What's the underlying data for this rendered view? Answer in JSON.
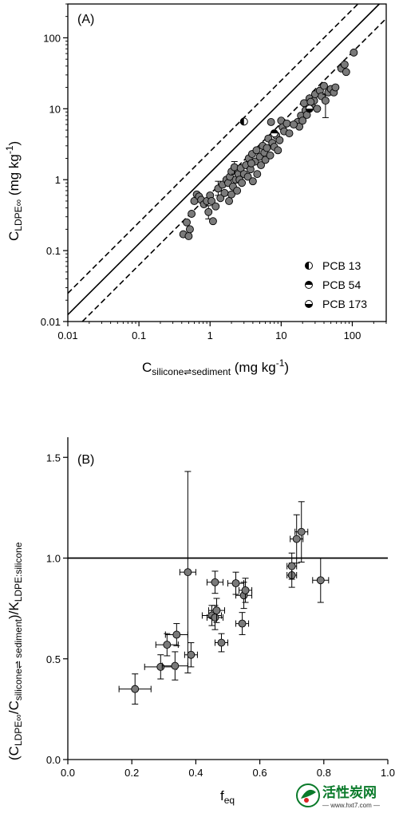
{
  "chart_data": [
    {
      "type": "scatter",
      "panel_label": "(A)",
      "xscale": "log",
      "yscale": "log",
      "xlim": [
        0.01,
        300
      ],
      "ylim": [
        0.01,
        300
      ],
      "xticks": [
        "0.01",
        "0.1",
        "1",
        "10",
        "100"
      ],
      "yticks": [
        "0.01",
        "0.1",
        "1",
        "10",
        "100"
      ],
      "xlabel": {
        "main": "C",
        "sub": "silicone⇌sediment",
        "unit": " (mg kg",
        "sup": "-1",
        "close": ")"
      },
      "ylabel": {
        "main": "C",
        "sub": "LDPE∞",
        "unit": " (mg kg",
        "sup": "-1",
        "close": ")"
      },
      "lines": [
        {
          "style": "solid",
          "slope": 1,
          "intercept_factor": 1.25
        },
        {
          "style": "dashed",
          "slope": 1,
          "intercept_factor": 0.625
        },
        {
          "style": "dashed",
          "slope": 1,
          "intercept_factor": 2.5
        }
      ],
      "legend": {
        "placement": "bottom-right",
        "entries": [
          "PCB 13",
          "PCB 54",
          "PCB 173"
        ]
      },
      "special_points": [
        {
          "name": "PCB 13",
          "x": 3.0,
          "y": 6.6
        },
        {
          "name": "PCB 54",
          "x": 8.0,
          "y": 4.5
        },
        {
          "name": "PCB 173",
          "x": 25.0,
          "y": 10.0
        }
      ],
      "points": [
        {
          "x": 0.42,
          "y": 0.17
        },
        {
          "x": 0.47,
          "y": 0.25
        },
        {
          "x": 0.5,
          "y": 0.16
        },
        {
          "x": 0.52,
          "y": 0.2
        },
        {
          "x": 0.55,
          "y": 0.33
        },
        {
          "x": 0.6,
          "y": 0.5
        },
        {
          "x": 0.65,
          "y": 0.62
        },
        {
          "x": 0.7,
          "y": 0.58
        },
        {
          "x": 0.75,
          "y": 0.52
        },
        {
          "x": 0.82,
          "y": 0.45
        },
        {
          "x": 0.9,
          "y": 0.5
        },
        {
          "x": 0.95,
          "y": 0.35,
          "yerr": [
            0.28,
            0.43
          ]
        },
        {
          "x": 1.0,
          "y": 0.6
        },
        {
          "x": 1.05,
          "y": 0.5
        },
        {
          "x": 1.1,
          "y": 0.26
        },
        {
          "x": 1.2,
          "y": 0.42
        },
        {
          "x": 1.3,
          "y": 0.75,
          "yerr": [
            0.6,
            0.95
          ]
        },
        {
          "x": 1.4,
          "y": 0.55
        },
        {
          "x": 1.5,
          "y": 0.85
        },
        {
          "x": 1.6,
          "y": 0.65
        },
        {
          "x": 1.7,
          "y": 1.0
        },
        {
          "x": 1.8,
          "y": 0.9
        },
        {
          "x": 1.85,
          "y": 0.5
        },
        {
          "x": 1.9,
          "y": 1.1
        },
        {
          "x": 2.0,
          "y": 0.62
        },
        {
          "x": 2.0,
          "y": 1.3
        },
        {
          "x": 2.1,
          "y": 0.8
        },
        {
          "x": 2.2,
          "y": 1.5,
          "yerr": [
            1.2,
            1.8
          ]
        },
        {
          "x": 2.3,
          "y": 1.0
        },
        {
          "x": 2.4,
          "y": 0.7
        },
        {
          "x": 2.5,
          "y": 1.2
        },
        {
          "x": 2.6,
          "y": 1.0
        },
        {
          "x": 2.7,
          "y": 1.45
        },
        {
          "x": 2.8,
          "y": 0.9
        },
        {
          "x": 3.0,
          "y": 1.2
        },
        {
          "x": 3.2,
          "y": 1.6
        },
        {
          "x": 3.4,
          "y": 1.1
        },
        {
          "x": 3.5,
          "y": 2.0
        },
        {
          "x": 3.7,
          "y": 1.4
        },
        {
          "x": 3.9,
          "y": 2.3
        },
        {
          "x": 4.0,
          "y": 0.95
        },
        {
          "x": 4.3,
          "y": 1.8
        },
        {
          "x": 4.5,
          "y": 2.6
        },
        {
          "x": 4.6,
          "y": 1.2
        },
        {
          "x": 5.0,
          "y": 2.1
        },
        {
          "x": 5.2,
          "y": 1.6
        },
        {
          "x": 5.5,
          "y": 3.0
        },
        {
          "x": 5.8,
          "y": 2.4
        },
        {
          "x": 6.0,
          "y": 1.9
        },
        {
          "x": 6.3,
          "y": 2.8
        },
        {
          "x": 6.6,
          "y": 3.8
        },
        {
          "x": 7.0,
          "y": 2.2
        },
        {
          "x": 7.2,
          "y": 6.5
        },
        {
          "x": 7.5,
          "y": 3.3
        },
        {
          "x": 8.0,
          "y": 2.9
        },
        {
          "x": 8.5,
          "y": 4.2
        },
        {
          "x": 9.0,
          "y": 2.6
        },
        {
          "x": 9.5,
          "y": 3.6
        },
        {
          "x": 10.0,
          "y": 6.8
        },
        {
          "x": 10.5,
          "y": 5.5
        },
        {
          "x": 11.0,
          "y": 4.8
        },
        {
          "x": 12.0,
          "y": 6.2
        },
        {
          "x": 13.0,
          "y": 4.5
        },
        {
          "x": 17.0,
          "y": 6.5
        },
        {
          "x": 18.0,
          "y": 5.6
        },
        {
          "x": 19.0,
          "y": 8.0
        },
        {
          "x": 20.0,
          "y": 6.8
        },
        {
          "x": 21.0,
          "y": 12.0
        },
        {
          "x": 22.0,
          "y": 9.5
        },
        {
          "x": 23.0,
          "y": 8.2
        },
        {
          "x": 25.0,
          "y": 14.0
        },
        {
          "x": 27.0,
          "y": 11.0
        },
        {
          "x": 29.0,
          "y": 13.0
        },
        {
          "x": 30.0,
          "y": 16.0
        },
        {
          "x": 32.0,
          "y": 10.0
        },
        {
          "x": 35.0,
          "y": 18.0
        },
        {
          "x": 37.0,
          "y": 15.0
        },
        {
          "x": 40.0,
          "y": 21.0
        },
        {
          "x": 42.0,
          "y": 13.0,
          "yerr": [
            7.5,
            16.0
          ]
        },
        {
          "x": 46.0,
          "y": 17.0
        },
        {
          "x": 50.0,
          "y": 19.0
        },
        {
          "x": 55.0,
          "y": 17.0
        },
        {
          "x": 58.0,
          "y": 20.0
        },
        {
          "x": 70.0,
          "y": 37.0
        },
        {
          "x": 78.0,
          "y": 42.0
        },
        {
          "x": 82.0,
          "y": 33.0
        },
        {
          "x": 105.0,
          "y": 62.0
        },
        {
          "x": 26.0,
          "y": 12.5
        },
        {
          "x": 15.0,
          "y": 6.0
        },
        {
          "x": 3.8,
          "y": 1.7
        }
      ]
    },
    {
      "type": "scatter",
      "panel_label": "(B)",
      "xlim": [
        0.0,
        1.0
      ],
      "ylim": [
        0.0,
        1.6
      ],
      "xticks": [
        "0.0",
        "0.2",
        "0.4",
        "0.6",
        "0.8",
        "1.0"
      ],
      "yticks": [
        "0.0",
        "0.5",
        "1.0",
        "1.5"
      ],
      "xlabel": {
        "main": "f",
        "sub": "eq"
      },
      "ylabel": {
        "open": "(C",
        "sub1": "LDPE∞",
        "mid": "/C",
        "sub2": "silicone⇌ sediment",
        "close": ")/K",
        "sub3": "LDPE:silicone"
      },
      "reference_line": 1.0,
      "points": [
        {
          "x": 0.21,
          "y": 0.35,
          "xerr": 0.05,
          "yerr": 0.075
        },
        {
          "x": 0.29,
          "y": 0.46,
          "xerr": 0.05,
          "yerr": 0.06
        },
        {
          "x": 0.31,
          "y": 0.57,
          "xerr": 0.035,
          "yerr": 0.055
        },
        {
          "x": 0.335,
          "y": 0.465,
          "xerr": 0.04,
          "yerr": 0.07
        },
        {
          "x": 0.34,
          "y": 0.62,
          "xerr": 0.035,
          "yerr": 0.055
        },
        {
          "x": 0.375,
          "y": 0.93,
          "xerr": 0.025,
          "yerr": 0.5
        },
        {
          "x": 0.385,
          "y": 0.52,
          "xerr": 0.02,
          "yerr": 0.06
        },
        {
          "x": 0.45,
          "y": 0.715,
          "xerr": 0.03,
          "yerr": 0.05
        },
        {
          "x": 0.46,
          "y": 0.88,
          "xerr": 0.025,
          "yerr": 0.055
        },
        {
          "x": 0.46,
          "y": 0.705,
          "xerr": 0.025,
          "yerr": 0.06
        },
        {
          "x": 0.465,
          "y": 0.74,
          "xerr": 0.025,
          "yerr": 0.06
        },
        {
          "x": 0.48,
          "y": 0.58,
          "xerr": 0.02,
          "yerr": 0.045
        },
        {
          "x": 0.525,
          "y": 0.875,
          "xerr": 0.025,
          "yerr": 0.055
        },
        {
          "x": 0.545,
          "y": 0.675,
          "xerr": 0.02,
          "yerr": 0.055
        },
        {
          "x": 0.55,
          "y": 0.815,
          "xerr": 0.025,
          "yerr": 0.065
        },
        {
          "x": 0.555,
          "y": 0.84,
          "xerr": 0.02,
          "yerr": 0.06
        },
        {
          "x": 0.7,
          "y": 0.915,
          "xerr": 0.015,
          "yerr": 0.06
        },
        {
          "x": 0.7,
          "y": 0.96,
          "xerr": 0.015,
          "yerr": 0.065
        },
        {
          "x": 0.715,
          "y": 1.095,
          "xerr": 0.02,
          "yerr": 0.12
        },
        {
          "x": 0.73,
          "y": 1.13,
          "xerr": 0.02,
          "yerr": 0.15
        },
        {
          "x": 0.79,
          "y": 0.89,
          "xerr": 0.025,
          "yerr": 0.11
        }
      ]
    }
  ],
  "watermark": {
    "text": "活性炭网",
    "url": "— www.hxt7.com —"
  },
  "colors": {
    "marker_fill": "#7a7a7a",
    "line": "#000000",
    "watermark": "#0a7a2a"
  }
}
